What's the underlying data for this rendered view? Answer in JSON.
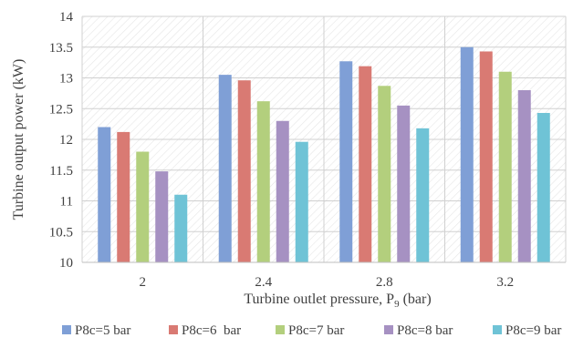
{
  "chart_data": {
    "type": "bar",
    "title": "",
    "xlabel": "Turbine outlet pressure, P",
    "xlabel_sub": "9",
    "xlabel_suffix": " (bar)",
    "ylabel": "Turbine output power (kW)",
    "ylim": [
      10,
      14
    ],
    "yticks": [
      "10",
      "10.5",
      "11",
      "11.5",
      "12",
      "12.5",
      "13",
      "13.5",
      "14"
    ],
    "categories": [
      "2",
      "2.4",
      "2.8",
      "3.2"
    ],
    "grid": true,
    "legend_position": "bottom",
    "series": [
      {
        "name": "P8c=5 bar",
        "color": "#7f9fd6",
        "values": [
          12.2,
          13.05,
          13.27,
          13.5
        ]
      },
      {
        "name": "P8c=6  bar",
        "color": "#d97a73",
        "values": [
          12.12,
          12.96,
          13.19,
          13.43
        ]
      },
      {
        "name": "P8c=7 bar",
        "color": "#b3cf7d",
        "values": [
          11.8,
          12.62,
          12.87,
          13.1
        ]
      },
      {
        "name": "P8c=8 bar",
        "color": "#a691c2",
        "values": [
          11.48,
          12.3,
          12.55,
          12.8
        ]
      },
      {
        "name": "P8c=9 bar",
        "color": "#6fc3d6",
        "values": [
          11.1,
          11.96,
          12.18,
          12.43
        ]
      }
    ]
  }
}
